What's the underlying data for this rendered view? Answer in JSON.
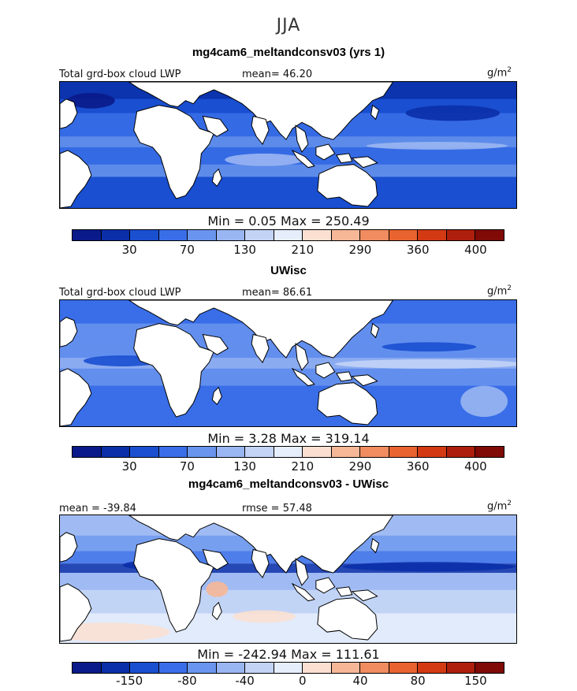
{
  "season": "JJA",
  "units": "g/m",
  "units_exp": "2",
  "panels": [
    {
      "title": "mg4cam6_meltandconsv03 (yrs 1)",
      "left_label": "Total grd-box cloud LWP",
      "stat_label": "mean=  46.20",
      "minmax": "Min =    0.05 Max = 250.49",
      "ticks": [
        "30",
        "70",
        "130",
        "210",
        "290",
        "360",
        "400"
      ],
      "stats": {
        "mean": 46.2,
        "min": 0.05,
        "max": 250.49
      }
    },
    {
      "title": "UWisc",
      "left_label": "Total grd-box cloud LWP",
      "stat_label": "mean=  86.61",
      "minmax": "Min =    3.28 Max = 319.14",
      "ticks": [
        "30",
        "70",
        "130",
        "210",
        "290",
        "360",
        "400"
      ],
      "stats": {
        "mean": 86.61,
        "min": 3.28,
        "max": 319.14
      }
    },
    {
      "title": "mg4cam6_meltandconsv03 - UWisc",
      "left_label": "mean = -39.84",
      "stat_label": "rmse =  57.48",
      "minmax": "Min = -242.94 Max = 111.61",
      "ticks": [
        "-150",
        "-80",
        "-40",
        "0",
        "40",
        "80",
        "150"
      ],
      "stats": {
        "mean": -39.84,
        "rmse": 57.48,
        "min": -242.94,
        "max": 111.61
      }
    }
  ],
  "colors": {
    "palette": [
      "#0a1a8a",
      "#0b2fa8",
      "#1a4fd0",
      "#3a6ee8",
      "#6a95ee",
      "#9ab6f2",
      "#c2d3f6",
      "#e6eefc",
      "#fbe0d2",
      "#f6b797",
      "#f08c60",
      "#e8632f",
      "#d33a14",
      "#ad1f0c",
      "#7f0a06"
    ],
    "land": "#ffffff",
    "coast": "#000000"
  }
}
